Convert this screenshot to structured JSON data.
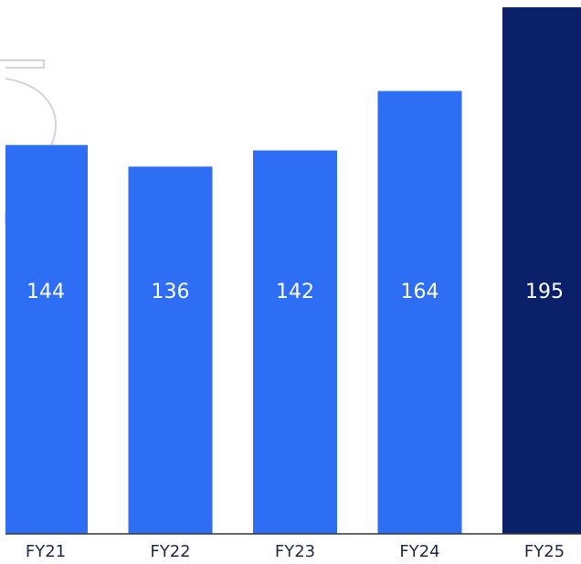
{
  "chart_data": {
    "type": "bar",
    "categories": [
      "FY21",
      "FY22",
      "FY23",
      "FY24",
      "FY25"
    ],
    "values": [
      144,
      136,
      142,
      164,
      195
    ],
    "value_labels": [
      "144",
      "136",
      "142",
      "164",
      "195"
    ],
    "title": "",
    "xlabel": "",
    "ylabel": "",
    "ylim": [
      0,
      195
    ],
    "grid": false,
    "legend": "none",
    "colors": {
      "bar": "#2e6ef5",
      "highlight_bar": "#0a2069",
      "value_label": "#ffffff",
      "axis_line": "#333333",
      "tick_label": "#1f2a44",
      "decoration_stroke": "#d4d4d4"
    },
    "highlight_index": 4
  }
}
